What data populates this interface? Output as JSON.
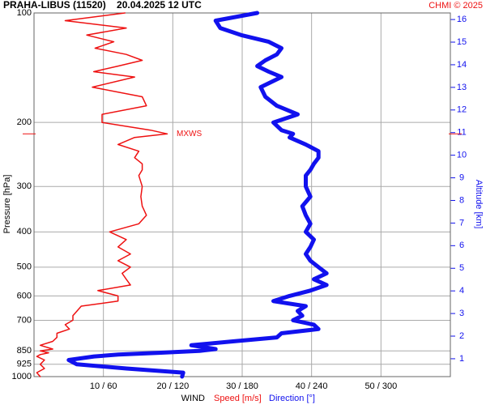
{
  "chart_data": {
    "type": "profile",
    "title": "PRAHA-LIBUS (11520)    20.04.2025 12 UTC",
    "credit": "CHMI © 2025",
    "ylabel": "Pressure [hPa]",
    "y2label": "Altitude [km]",
    "xlabel": "WIND",
    "annotation": {
      "text": "MXWS",
      "pressure": 215
    },
    "ylog": true,
    "ylim": [
      1000,
      100
    ],
    "yticks": [
      100,
      200,
      300,
      400,
      500,
      600,
      700,
      850,
      925,
      1000
    ],
    "y2lim": [
      0.21,
      16.29
    ],
    "y2ticks": [
      1,
      2,
      3,
      4,
      5,
      6,
      7,
      8,
      9,
      10,
      11,
      12,
      13,
      14,
      15,
      16
    ],
    "xlim": [
      0,
      60
    ],
    "x2lim": [
      0,
      360
    ],
    "xticks": [
      {
        "value": 10,
        "label": "10 / 60"
      },
      {
        "value": 20,
        "label": "20 / 120"
      },
      {
        "value": 30,
        "label": "30 / 180"
      },
      {
        "value": 40,
        "label": "40 / 240"
      },
      {
        "value": 50,
        "label": "50 / 300"
      }
    ],
    "grid": true,
    "pressure": [
      100,
      105,
      110,
      115,
      120,
      125,
      130,
      135,
      140,
      145,
      150,
      160,
      170,
      180,
      190,
      200,
      210,
      215,
      220,
      230,
      240,
      250,
      260,
      270,
      280,
      300,
      320,
      340,
      360,
      380,
      400,
      420,
      440,
      460,
      480,
      500,
      520,
      540,
      560,
      580,
      600,
      620,
      640,
      660,
      680,
      700,
      720,
      740,
      760,
      780,
      800,
      820,
      840,
      850,
      860,
      870,
      880,
      900,
      925,
      950,
      975,
      1000
    ],
    "series": [
      {
        "name": "Speed [m/s]",
        "color": "#ee1111",
        "axis": "x",
        "values": [
          13.1,
          4.5,
          13.3,
          7.6,
          11.5,
          8.8,
          13.3,
          15.6,
          12.1,
          8.6,
          14.5,
          8.4,
          15.6,
          16.2,
          9.8,
          9.8,
          16.8,
          19.2,
          14.5,
          12.1,
          15.1,
          14.5,
          15.6,
          15.6,
          15.1,
          15.6,
          15.4,
          15.6,
          16.2,
          15.1,
          10.9,
          13.3,
          12.1,
          13.9,
          12.1,
          13.9,
          12.7,
          13.3,
          13.9,
          9.2,
          12.1,
          12.1,
          6.8,
          6.2,
          5.6,
          5.6,
          4.5,
          5.1,
          3.3,
          3.3,
          2.7,
          0.9,
          2.7,
          0.9,
          2.1,
          0.9,
          0.4,
          1.5,
          0.9,
          1.5,
          0.4,
          0.9
        ]
      },
      {
        "name": "Direction [°]",
        "color": "#1111ee",
        "axis": "x2",
        "values": [
          193,
          157,
          161,
          179,
          203,
          214,
          210,
          200,
          193,
          203,
          214,
          196,
          200,
          210,
          228,
          207,
          214,
          224,
          221,
          235,
          246,
          246,
          242,
          239,
          235,
          235,
          239,
          232,
          235,
          239,
          235,
          242,
          239,
          235,
          239,
          246,
          253,
          242,
          253,
          239,
          221,
          207,
          235,
          228,
          232,
          224,
          242,
          246,
          214,
          210,
          172,
          136,
          157,
          143,
          108,
          73,
          52,
          30,
          37,
          80,
          129,
          128
        ]
      }
    ]
  }
}
